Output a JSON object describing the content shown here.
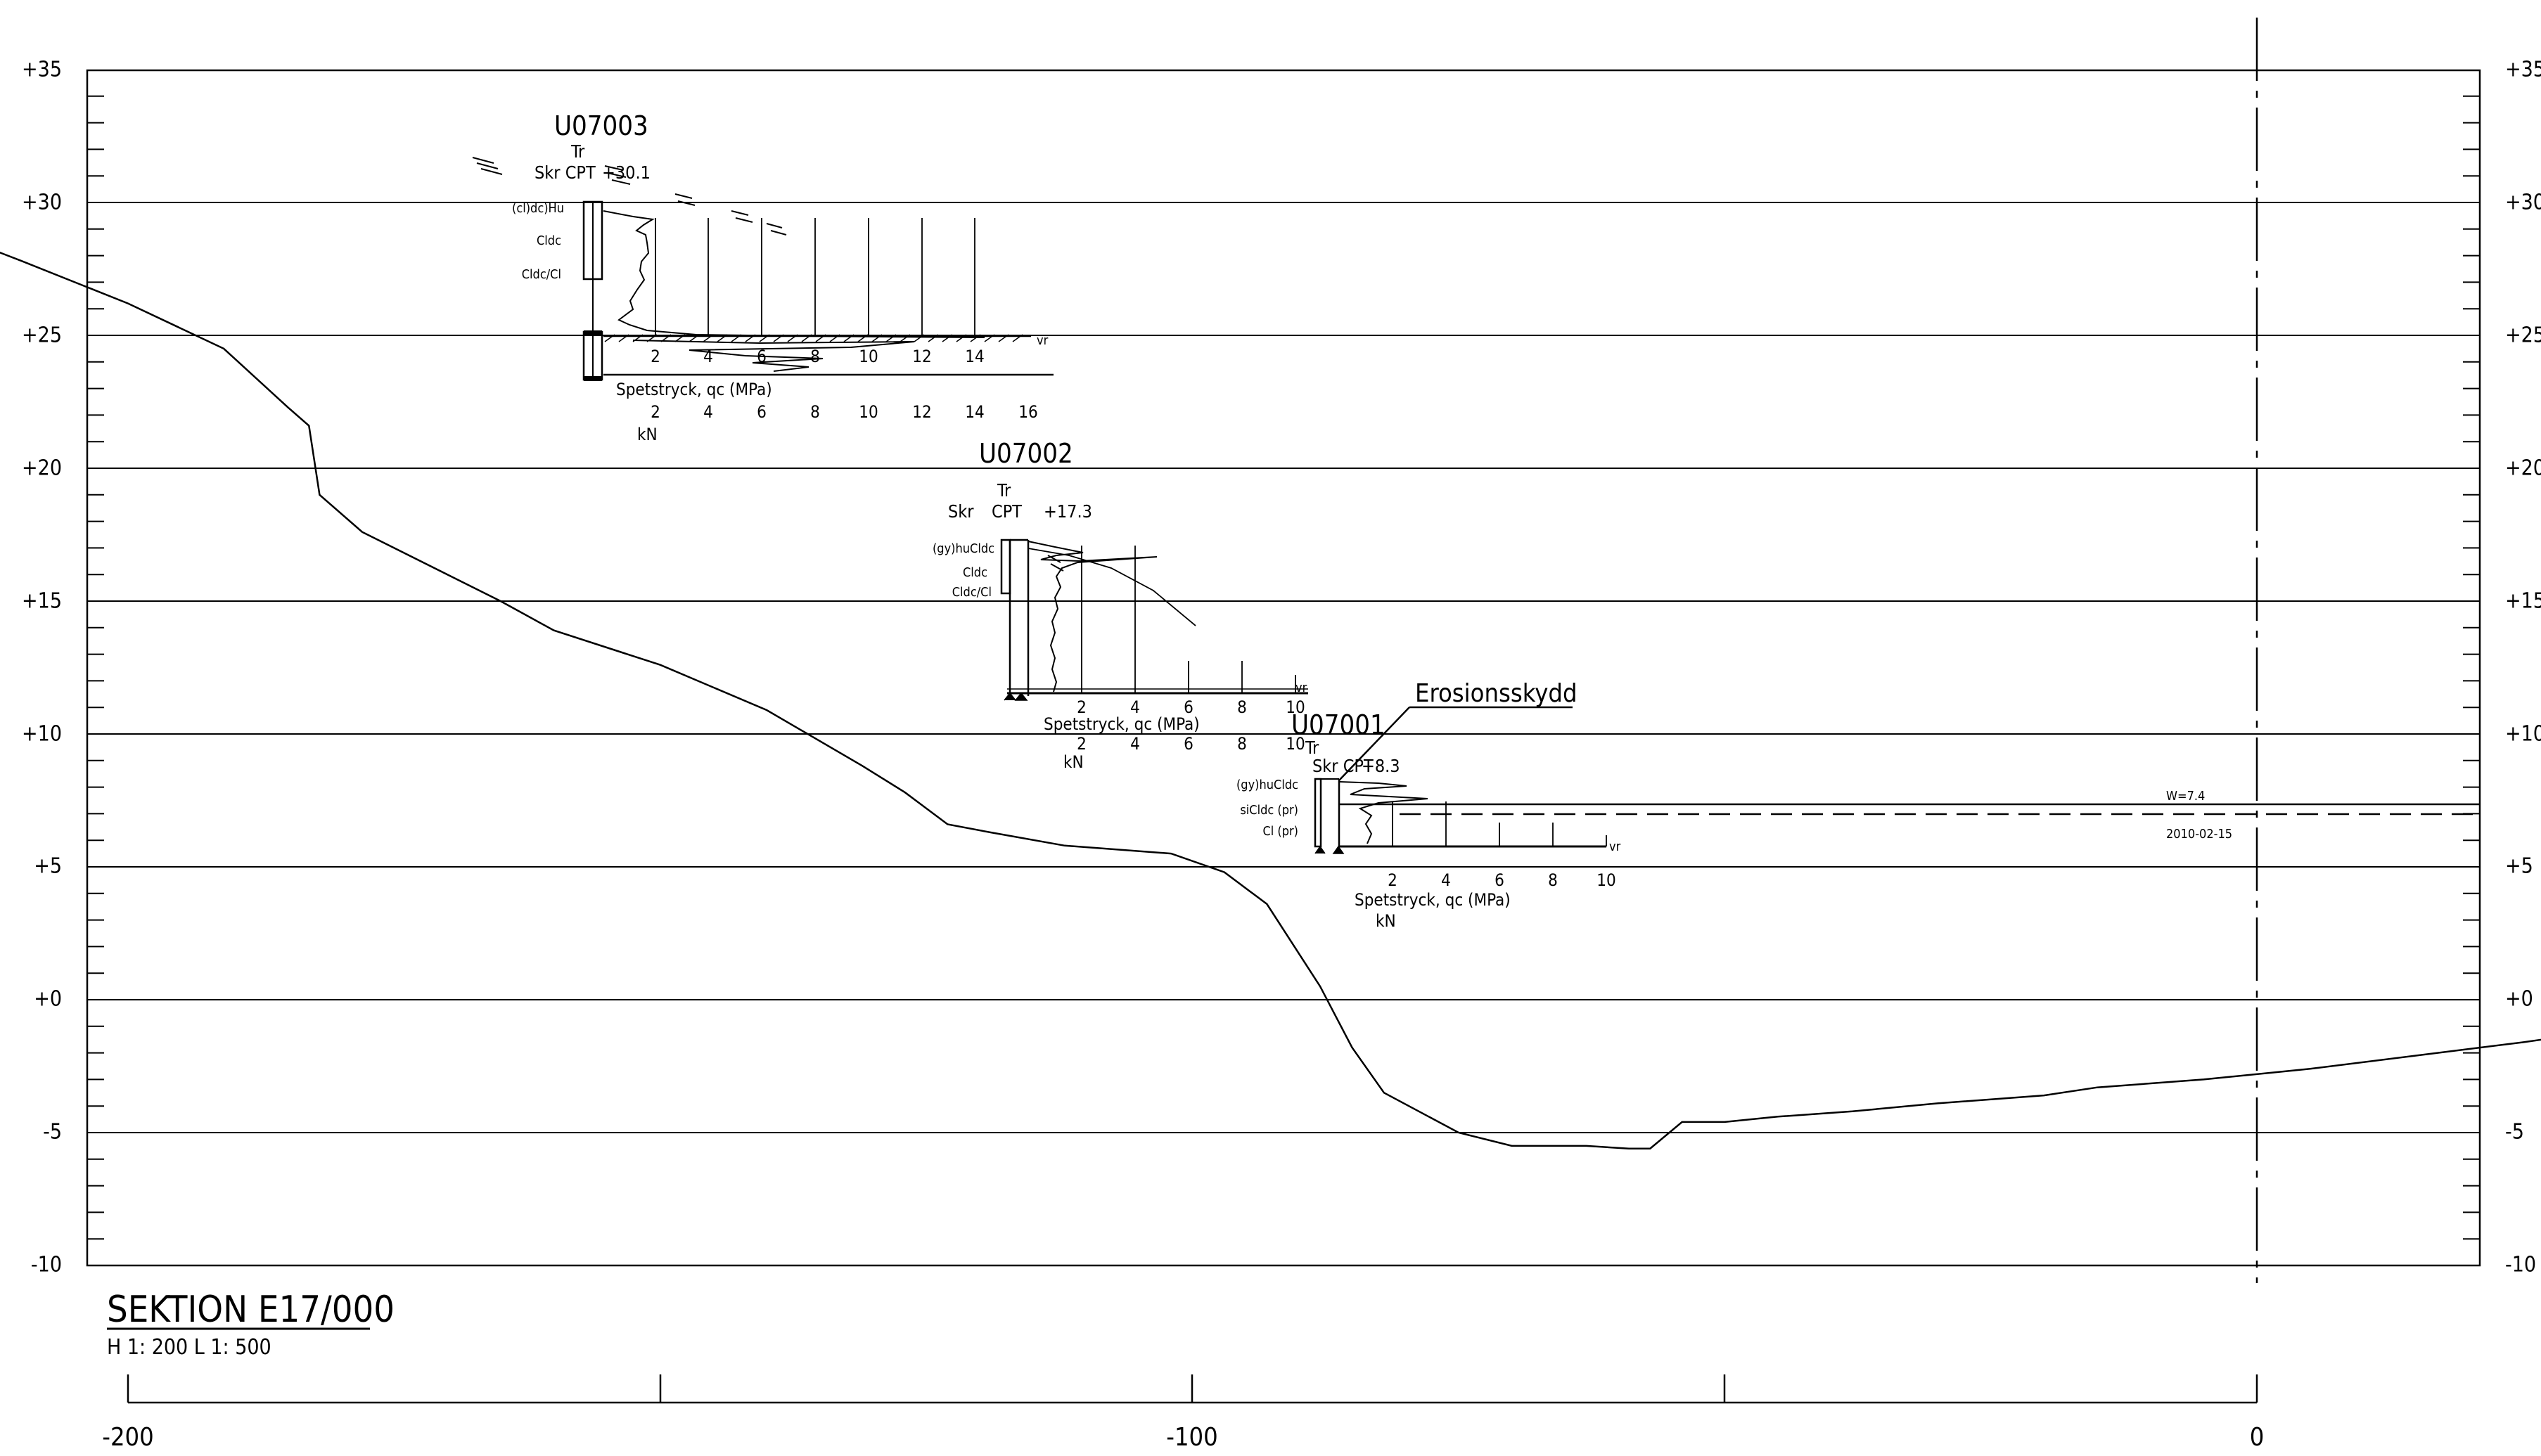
{
  "title": "SEKTION E17/000",
  "scale_text": "H 1: 200   L 1: 500",
  "elevation_labels": [
    "+35",
    "+30",
    "+25",
    "+20",
    "+15",
    "+10",
    "+5",
    "+0",
    "-5",
    "-10"
  ],
  "chainage_labels": [
    "-200",
    "-100",
    "0"
  ],
  "callout": "Erosionsskydd",
  "water": {
    "level": "W=7.4",
    "date": "2010-02-15"
  },
  "boreholes": [
    {
      "id": "U07003",
      "method1": "Tr",
      "method2": "Skr CPT",
      "elevation": "+30.1",
      "soil_layers": [
        "(cl)dc)Hu",
        "Cldc",
        "Cldc/Cl"
      ],
      "vr": "vr",
      "upper_ticks": [
        "2",
        "4",
        "6",
        "8",
        "10",
        "12",
        "14"
      ],
      "axis_title": "Spetstryck, qc (MPa)",
      "lower_ticks": [
        "2",
        "4",
        "6",
        "8",
        "10",
        "12",
        "14",
        "16"
      ],
      "unit": "kN"
    },
    {
      "id": "U07002",
      "method1": "Tr",
      "method2": "Skr",
      "method3": "CPT",
      "elevation": "+17.3",
      "soil_layers": [
        "(gy)huCldc",
        "Cldc",
        "Cldc/Cl"
      ],
      "vr": "vr",
      "upper_ticks": [
        "2",
        "4",
        "6",
        "8",
        "10"
      ],
      "axis_title": "Spetstryck, qc (MPa)",
      "lower_ticks": [
        "2",
        "4",
        "6",
        "8",
        "10"
      ],
      "unit": "kN"
    },
    {
      "id": "U07001",
      "method1": "Tr",
      "method2": "Skr CPT",
      "elevation": "+8.3",
      "soil_layers": [
        "(gy)huCldc",
        "siCldc (pr)",
        "Cl (pr)"
      ],
      "vr": "vr",
      "upper_ticks": [
        "2",
        "4",
        "6",
        "8",
        "10"
      ],
      "axis_title": "Spetstryck, qc (MPa)",
      "unit": "kN"
    }
  ],
  "terrain_profile": [
    [
      -232,
      31.5
    ],
    [
      -221,
      29.5
    ],
    [
      -210,
      27.8
    ],
    [
      -200,
      26.2
    ],
    [
      -191,
      24.5
    ],
    [
      -185,
      22.3
    ],
    [
      -183,
      21.6
    ],
    [
      -182,
      19.0
    ],
    [
      -178,
      17.6
    ],
    [
      -170,
      16.0
    ],
    [
      -165,
      15.0
    ],
    [
      -160,
      13.9
    ],
    [
      -150,
      12.6
    ],
    [
      -140,
      10.9
    ],
    [
      -131,
      8.8
    ],
    [
      -127,
      7.8
    ],
    [
      -123,
      6.6
    ],
    [
      -119,
      6.3
    ],
    [
      -112,
      5.8
    ],
    [
      -102,
      5.5
    ],
    [
      -97,
      4.8
    ],
    [
      -93,
      3.6
    ],
    [
      -88,
      0.5
    ],
    [
      -85,
      -1.8
    ],
    [
      -82,
      -3.5
    ],
    [
      -75,
      -5.0
    ],
    [
      -70,
      -5.5
    ],
    [
      -63,
      -5.5
    ],
    [
      -59,
      -5.6
    ],
    [
      -57,
      -5.6
    ],
    [
      -54,
      -4.6
    ],
    [
      -50,
      -4.6
    ],
    [
      -45,
      -4.4
    ],
    [
      -38,
      -4.2
    ],
    [
      -30,
      -3.9
    ],
    [
      -20,
      -3.6
    ],
    [
      -15,
      -3.3
    ],
    [
      -5,
      -3.0
    ],
    [
      5,
      -2.6
    ],
    [
      15,
      -2.1
    ],
    [
      25,
      -1.6
    ],
    [
      32,
      -1.2
    ],
    [
      35,
      -1.2
    ]
  ]
}
